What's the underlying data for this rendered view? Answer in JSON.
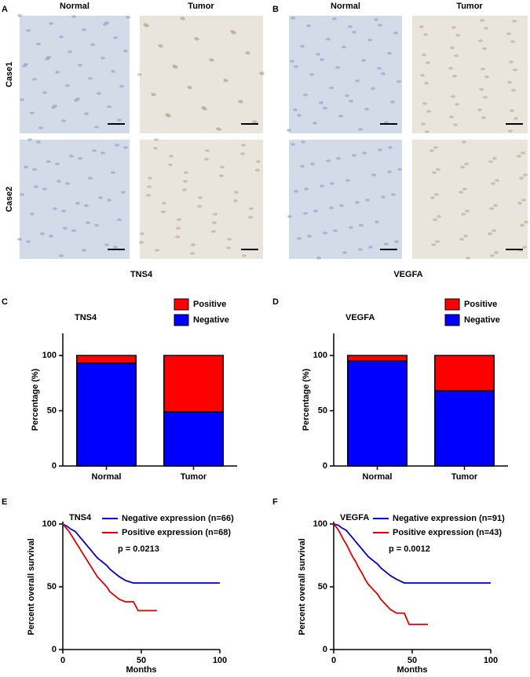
{
  "panels": [
    {
      "letter": "A",
      "columns": [
        "Normal",
        "Tumor"
      ],
      "rows": [
        "Case1",
        "Case2"
      ],
      "label": "TNS4"
    },
    {
      "letter": "B",
      "columns": [
        "Normal",
        "Tumor"
      ],
      "rows": [
        null,
        null
      ],
      "label": "VEGFA"
    }
  ],
  "chart_data": [
    {
      "type": "stacked_bar",
      "letter": "C",
      "title": "TNS4",
      "ylabel": "Percentage (%)",
      "categories": [
        "Normal",
        "Tumor"
      ],
      "series": [
        {
          "name": "Positive",
          "color": "#ff0000",
          "values": [
            7,
            51
          ]
        },
        {
          "name": "Negative",
          "color": "#0000ff",
          "values": [
            93,
            49
          ]
        }
      ],
      "ylim": [
        0,
        120
      ],
      "yticks": [
        0,
        50,
        100
      ]
    },
    {
      "type": "stacked_bar",
      "letter": "D",
      "title": "VEGFA",
      "ylabel": "Percentage (%)",
      "categories": [
        "Normal",
        "Tumor"
      ],
      "series": [
        {
          "name": "Positive",
          "color": "#ff0000",
          "values": [
            5,
            32
          ]
        },
        {
          "name": "Negative",
          "color": "#0000ff",
          "values": [
            95,
            68
          ]
        }
      ],
      "ylim": [
        0,
        120
      ],
      "yticks": [
        0,
        50,
        100
      ]
    },
    {
      "type": "survival",
      "letter": "E",
      "title": "TNS4",
      "annotation": "p = 0.0213",
      "xlabel": "Months",
      "ylabel": "Percent overall survival",
      "series": [
        {
          "name": "Negative expression (n=66)",
          "color": "#0000cc",
          "x": [
            0,
            3,
            5,
            8,
            10,
            12,
            14,
            16,
            18,
            20,
            22,
            25,
            28,
            30,
            33,
            36,
            40,
            45,
            50,
            70,
            100
          ],
          "values": [
            100,
            98,
            96,
            94,
            91,
            88,
            85,
            82,
            79,
            76,
            73,
            70,
            67,
            64,
            61,
            58,
            55,
            53,
            53,
            53,
            53
          ]
        },
        {
          "name": "Positive expression (n=68)",
          "color": "#dd0000",
          "x": [
            0,
            2,
            4,
            6,
            8,
            10,
            12,
            14,
            16,
            18,
            20,
            22,
            25,
            28,
            30,
            33,
            36,
            40,
            45,
            48,
            55,
            60
          ],
          "values": [
            100,
            97,
            94,
            90,
            86,
            82,
            78,
            74,
            70,
            66,
            62,
            58,
            54,
            50,
            46,
            43,
            40,
            38,
            38,
            31,
            31,
            31
          ]
        }
      ],
      "xlim": [
        0,
        100
      ],
      "xticks": [
        0,
        50,
        100
      ],
      "ylim": [
        0,
        100
      ],
      "yticks": [
        0,
        50,
        100
      ]
    },
    {
      "type": "survival",
      "letter": "F",
      "title": "VEGFA",
      "annotation": "p = 0.0012",
      "xlabel": "Months",
      "ylabel": "Percent overall survival",
      "series": [
        {
          "name": "Negative expression (n=91)",
          "color": "#0000cc",
          "x": [
            0,
            3,
            5,
            8,
            10,
            12,
            14,
            16,
            18,
            20,
            22,
            25,
            28,
            30,
            33,
            36,
            40,
            45,
            50,
            70,
            100
          ],
          "values": [
            100,
            99,
            97,
            95,
            92,
            89,
            86,
            83,
            80,
            77,
            74,
            71,
            68,
            65,
            62,
            59,
            56,
            53,
            53,
            53,
            53
          ]
        },
        {
          "name": "Positive expression (n=43)",
          "color": "#dd0000",
          "x": [
            0,
            2,
            4,
            6,
            8,
            10,
            12,
            14,
            16,
            18,
            20,
            22,
            25,
            28,
            30,
            33,
            36,
            40,
            45,
            48,
            55,
            60
          ],
          "values": [
            100,
            97,
            93,
            88,
            84,
            79,
            74,
            70,
            65,
            61,
            56,
            52,
            48,
            44,
            40,
            36,
            32,
            29,
            29,
            20,
            20,
            20
          ]
        }
      ],
      "xlim": [
        0,
        100
      ],
      "xticks": [
        0,
        50,
        100
      ],
      "ylim": [
        0,
        100
      ],
      "yticks": [
        0,
        50,
        100
      ]
    }
  ]
}
